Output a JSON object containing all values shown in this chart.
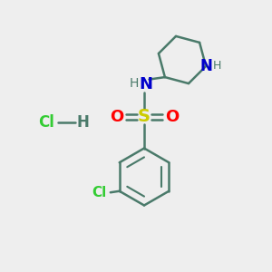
{
  "background_color": "#eeeeee",
  "bond_color": "#4a7a6a",
  "bond_width": 1.8,
  "S_color": "#cccc00",
  "O_color": "#ff0000",
  "N_color": "#0000cc",
  "H_color": "#4a7a6a",
  "Cl_color": "#33cc33",
  "figsize": [
    3.0,
    3.0
  ],
  "dpi": 100,
  "xlim": [
    0,
    10
  ],
  "ylim": [
    0,
    10
  ]
}
